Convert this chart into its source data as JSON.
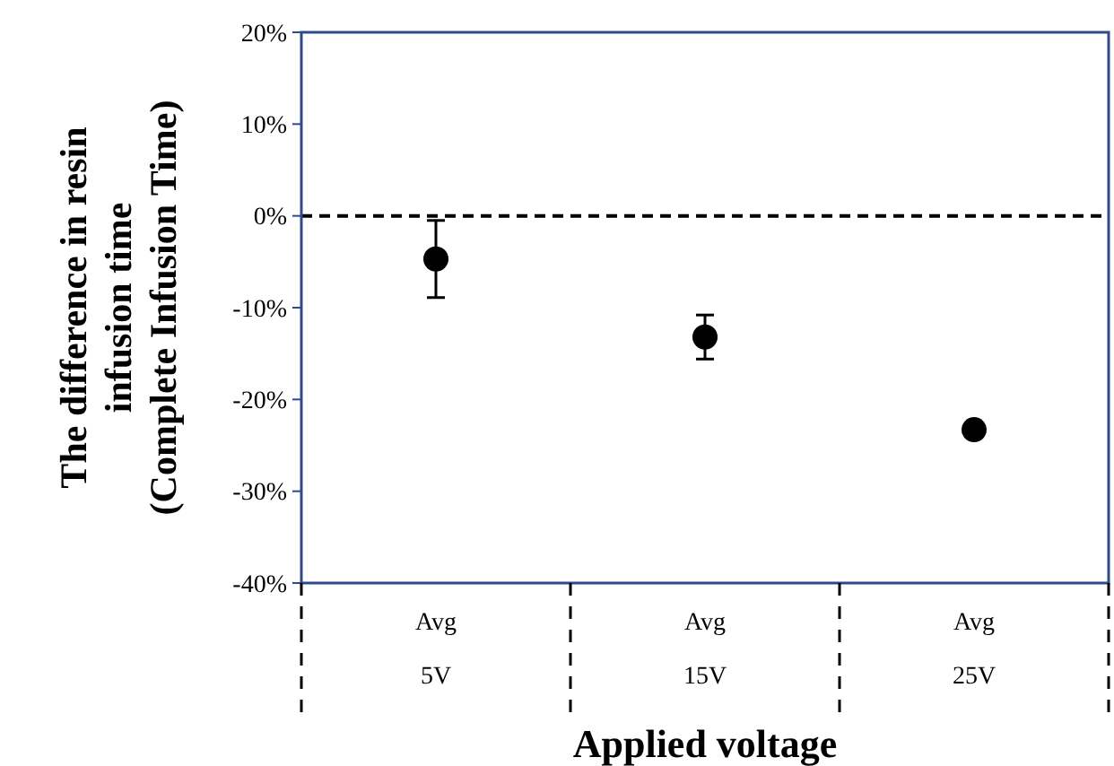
{
  "chart_data": {
    "type": "scatter",
    "xlabel": "Applied voltage",
    "ylabel": "The difference in resin\ninfusion time\n(Complete Infusion Time)",
    "categories": [
      "Avg\n5V",
      "Avg\n15V",
      "Avg\n25V"
    ],
    "values": [
      -4.7,
      -13.2,
      -23.3
    ],
    "errors": [
      4.2,
      2.4,
      null
    ],
    "color": "#000000",
    "marker": "circle",
    "ylim": [
      -40,
      20
    ],
    "yticks": [
      {
        "value": -40,
        "label": "-40%"
      },
      {
        "value": -30,
        "label": "-30%"
      },
      {
        "value": -20,
        "label": "-20%"
      },
      {
        "value": -10,
        "label": "-10%"
      },
      {
        "value": 0,
        "label": "0%"
      },
      {
        "value": 10,
        "label": "10%"
      },
      {
        "value": 20,
        "label": "20%"
      }
    ],
    "ref_lines": [
      {
        "axis": "y",
        "value": 0,
        "line_style": "dashed",
        "color": "#000000"
      }
    ],
    "grid": false
  }
}
